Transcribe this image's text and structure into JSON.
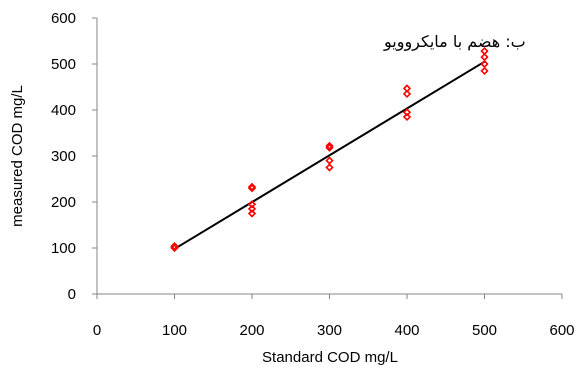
{
  "chart_data": {
    "type": "scatter",
    "title": "ب: هضم با مایکروویو",
    "xlabel": "Standard COD mg/L",
    "ylabel": "measured COD mg/L",
    "xlim": [
      0,
      600
    ],
    "ylim": [
      0,
      600
    ],
    "xticks": [
      "0",
      "100",
      "200",
      "300",
      "400",
      "500",
      "600"
    ],
    "yticks": [
      "0",
      "100",
      "200",
      "300",
      "400",
      "500",
      "600"
    ],
    "grid": false,
    "legend": "none",
    "marker_color": "#ff0000",
    "line_color": "#000000",
    "points": [
      {
        "x": 100,
        "y": 100
      },
      {
        "x": 100,
        "y": 102
      },
      {
        "x": 100,
        "y": 104
      },
      {
        "x": 200,
        "y": 175
      },
      {
        "x": 200,
        "y": 185
      },
      {
        "x": 200,
        "y": 195
      },
      {
        "x": 200,
        "y": 230
      },
      {
        "x": 200,
        "y": 233
      },
      {
        "x": 300,
        "y": 275
      },
      {
        "x": 300,
        "y": 290
      },
      {
        "x": 300,
        "y": 318
      },
      {
        "x": 300,
        "y": 322
      },
      {
        "x": 400,
        "y": 385
      },
      {
        "x": 400,
        "y": 395
      },
      {
        "x": 400,
        "y": 435
      },
      {
        "x": 400,
        "y": 447
      },
      {
        "x": 500,
        "y": 485
      },
      {
        "x": 500,
        "y": 500
      },
      {
        "x": 500,
        "y": 515
      },
      {
        "x": 500,
        "y": 528
      }
    ],
    "trendline": {
      "x": [
        100,
        500
      ],
      "y": [
        98,
        505
      ]
    }
  }
}
